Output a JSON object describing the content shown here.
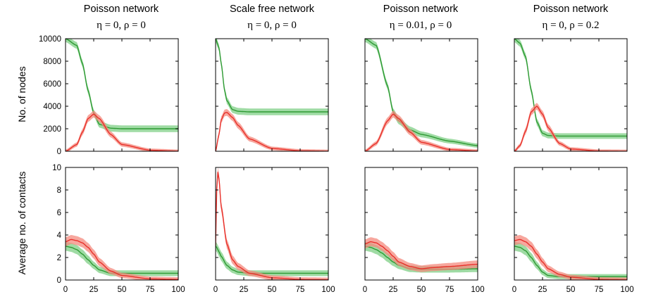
{
  "colors": {
    "susceptible": "#2e9a33",
    "infected": "#e8302a",
    "susceptible_band": "#7fcf86",
    "infected_band": "#f48a7e"
  },
  "columns": [
    {
      "title": "Poisson network",
      "subtitle": "η = 0, ρ = 0"
    },
    {
      "title": "Scale free network",
      "subtitle": "η = 0, ρ = 0"
    },
    {
      "title": "Poisson network",
      "subtitle": "η = 0.01, ρ = 0"
    },
    {
      "title": "Poisson network",
      "subtitle": "η = 0, ρ = 0.2"
    }
  ],
  "rows": [
    {
      "ylabel": "No. of nodes"
    },
    {
      "ylabel": "Average no. of contacts"
    }
  ],
  "chart_data": [
    {
      "type": "line",
      "panel": "top-1",
      "title": "Poisson network",
      "subtitle": "η = 0, ρ = 0",
      "ylabel": "No. of nodes",
      "xlim": [
        0,
        100
      ],
      "ylim": [
        0,
        10000
      ],
      "yticks": [
        0,
        2000,
        4000,
        6000,
        8000,
        10000
      ],
      "x": [
        0,
        10,
        15,
        20,
        25,
        30,
        40,
        50,
        75,
        100
      ],
      "series": [
        {
          "name": "susceptible",
          "values": [
            10000,
            9400,
            7800,
            5400,
            3400,
            2400,
            2050,
            2000,
            2000,
            2000
          ]
        },
        {
          "name": "infected",
          "values": [
            0,
            600,
            1700,
            2900,
            3300,
            2900,
            1500,
            600,
            90,
            10
          ]
        }
      ]
    },
    {
      "type": "line",
      "panel": "top-2",
      "title": "Scale free network",
      "subtitle": "η = 0, ρ = 0",
      "ylabel": "No. of nodes",
      "xlim": [
        0,
        100
      ],
      "ylim": [
        0,
        10000
      ],
      "x": [
        0,
        3,
        5,
        8,
        10,
        15,
        20,
        30,
        50,
        75,
        100
      ],
      "series": [
        {
          "name": "susceptible",
          "values": [
            10000,
            9200,
            7800,
            5400,
            4500,
            3700,
            3550,
            3500,
            3500,
            3500,
            3500
          ]
        },
        {
          "name": "infected",
          "values": [
            0,
            1500,
            2800,
            3400,
            3450,
            3000,
            2300,
            1100,
            250,
            40,
            5
          ]
        }
      ]
    },
    {
      "type": "line",
      "panel": "top-3",
      "title": "Poisson network",
      "subtitle": "η = 0.01, ρ = 0",
      "ylabel": "No. of nodes",
      "xlim": [
        0,
        100
      ],
      "ylim": [
        0,
        10000
      ],
      "x": [
        0,
        10,
        20,
        25,
        30,
        40,
        50,
        75,
        100
      ],
      "series": [
        {
          "name": "susceptible",
          "values": [
            10000,
            9400,
            5800,
            3500,
            2700,
            1900,
            1500,
            900,
            500
          ]
        },
        {
          "name": "infected",
          "values": [
            0,
            700,
            2700,
            3300,
            2900,
            1700,
            800,
            150,
            20
          ]
        }
      ]
    },
    {
      "type": "line",
      "panel": "top-4",
      "title": "Poisson network",
      "subtitle": "η = 0, ρ = 0.2",
      "ylabel": "No. of nodes",
      "xlim": [
        0,
        100
      ],
      "ylim": [
        0,
        10000
      ],
      "x": [
        0,
        5,
        10,
        15,
        20,
        25,
        30,
        40,
        50,
        75,
        100
      ],
      "series": [
        {
          "name": "susceptible",
          "values": [
            10000,
            9600,
            8400,
            5400,
            2600,
            1600,
            1400,
            1350,
            1350,
            1350,
            1350
          ]
        },
        {
          "name": "infected",
          "values": [
            0,
            500,
            1800,
            3500,
            4000,
            3300,
            2100,
            700,
            200,
            20,
            5
          ]
        }
      ]
    },
    {
      "type": "line",
      "panel": "bottom-1",
      "ylabel": "Average no. of contacts",
      "xlim": [
        0,
        100
      ],
      "ylim": [
        0,
        10
      ],
      "yticks": [
        0,
        2,
        4,
        6,
        8,
        10
      ],
      "xticks": [
        0,
        25,
        50,
        75,
        100
      ],
      "x": [
        0,
        5,
        10,
        15,
        20,
        25,
        30,
        40,
        50,
        75,
        100
      ],
      "series": [
        {
          "name": "susceptible",
          "values": [
            3.0,
            2.9,
            2.7,
            2.3,
            1.8,
            1.3,
            0.9,
            0.6,
            0.6,
            0.6,
            0.6
          ]
        },
        {
          "name": "infected",
          "values": [
            3.4,
            3.6,
            3.5,
            3.3,
            2.9,
            2.3,
            1.6,
            0.8,
            0.4,
            0.1,
            0.05
          ]
        }
      ]
    },
    {
      "type": "line",
      "panel": "bottom-2",
      "ylabel": "Average no. of contacts",
      "xlim": [
        0,
        100
      ],
      "ylim": [
        0,
        10
      ],
      "xticks": [
        0,
        25,
        50,
        75,
        100
      ],
      "x": [
        0,
        1,
        2,
        3,
        5,
        10,
        15,
        20,
        30,
        50,
        75,
        100
      ],
      "series": [
        {
          "name": "susceptible",
          "values": [
            3.0,
            2.9,
            2.7,
            2.5,
            2.1,
            1.3,
            0.9,
            0.7,
            0.6,
            0.6,
            0.6,
            0.6
          ]
        },
        {
          "name": "infected",
          "values": [
            3.0,
            8.0,
            9.6,
            9.0,
            6.5,
            3.2,
            1.8,
            1.2,
            0.6,
            0.2,
            0.05,
            0.02
          ]
        }
      ]
    },
    {
      "type": "line",
      "panel": "bottom-3",
      "ylabel": "Average no. of contacts",
      "xlim": [
        0,
        100
      ],
      "ylim": [
        0,
        10
      ],
      "xticks": [
        0,
        25,
        50,
        75,
        100
      ],
      "x": [
        0,
        5,
        10,
        15,
        20,
        25,
        30,
        40,
        50,
        60,
        75,
        100
      ],
      "series": [
        {
          "name": "susceptible",
          "values": [
            3.0,
            2.9,
            2.7,
            2.4,
            2.0,
            1.6,
            1.3,
            1.0,
            0.95,
            0.95,
            0.95,
            1.0
          ]
        },
        {
          "name": "infected",
          "values": [
            3.2,
            3.4,
            3.3,
            3.0,
            2.6,
            2.1,
            1.6,
            1.2,
            1.0,
            1.1,
            1.2,
            1.4
          ]
        }
      ]
    },
    {
      "type": "line",
      "panel": "bottom-4",
      "ylabel": "Average no. of contacts",
      "xlim": [
        0,
        100
      ],
      "ylim": [
        0,
        10
      ],
      "xticks": [
        0,
        25,
        50,
        75,
        100
      ],
      "x": [
        0,
        5,
        10,
        15,
        20,
        25,
        30,
        40,
        50,
        75,
        100
      ],
      "series": [
        {
          "name": "susceptible",
          "values": [
            3.0,
            2.9,
            2.6,
            2.0,
            1.3,
            0.7,
            0.4,
            0.3,
            0.3,
            0.3,
            0.3
          ]
        },
        {
          "name": "infected",
          "values": [
            3.5,
            3.6,
            3.4,
            3.0,
            2.3,
            1.6,
            1.0,
            0.5,
            0.25,
            0.05,
            0.02
          ]
        }
      ]
    }
  ]
}
